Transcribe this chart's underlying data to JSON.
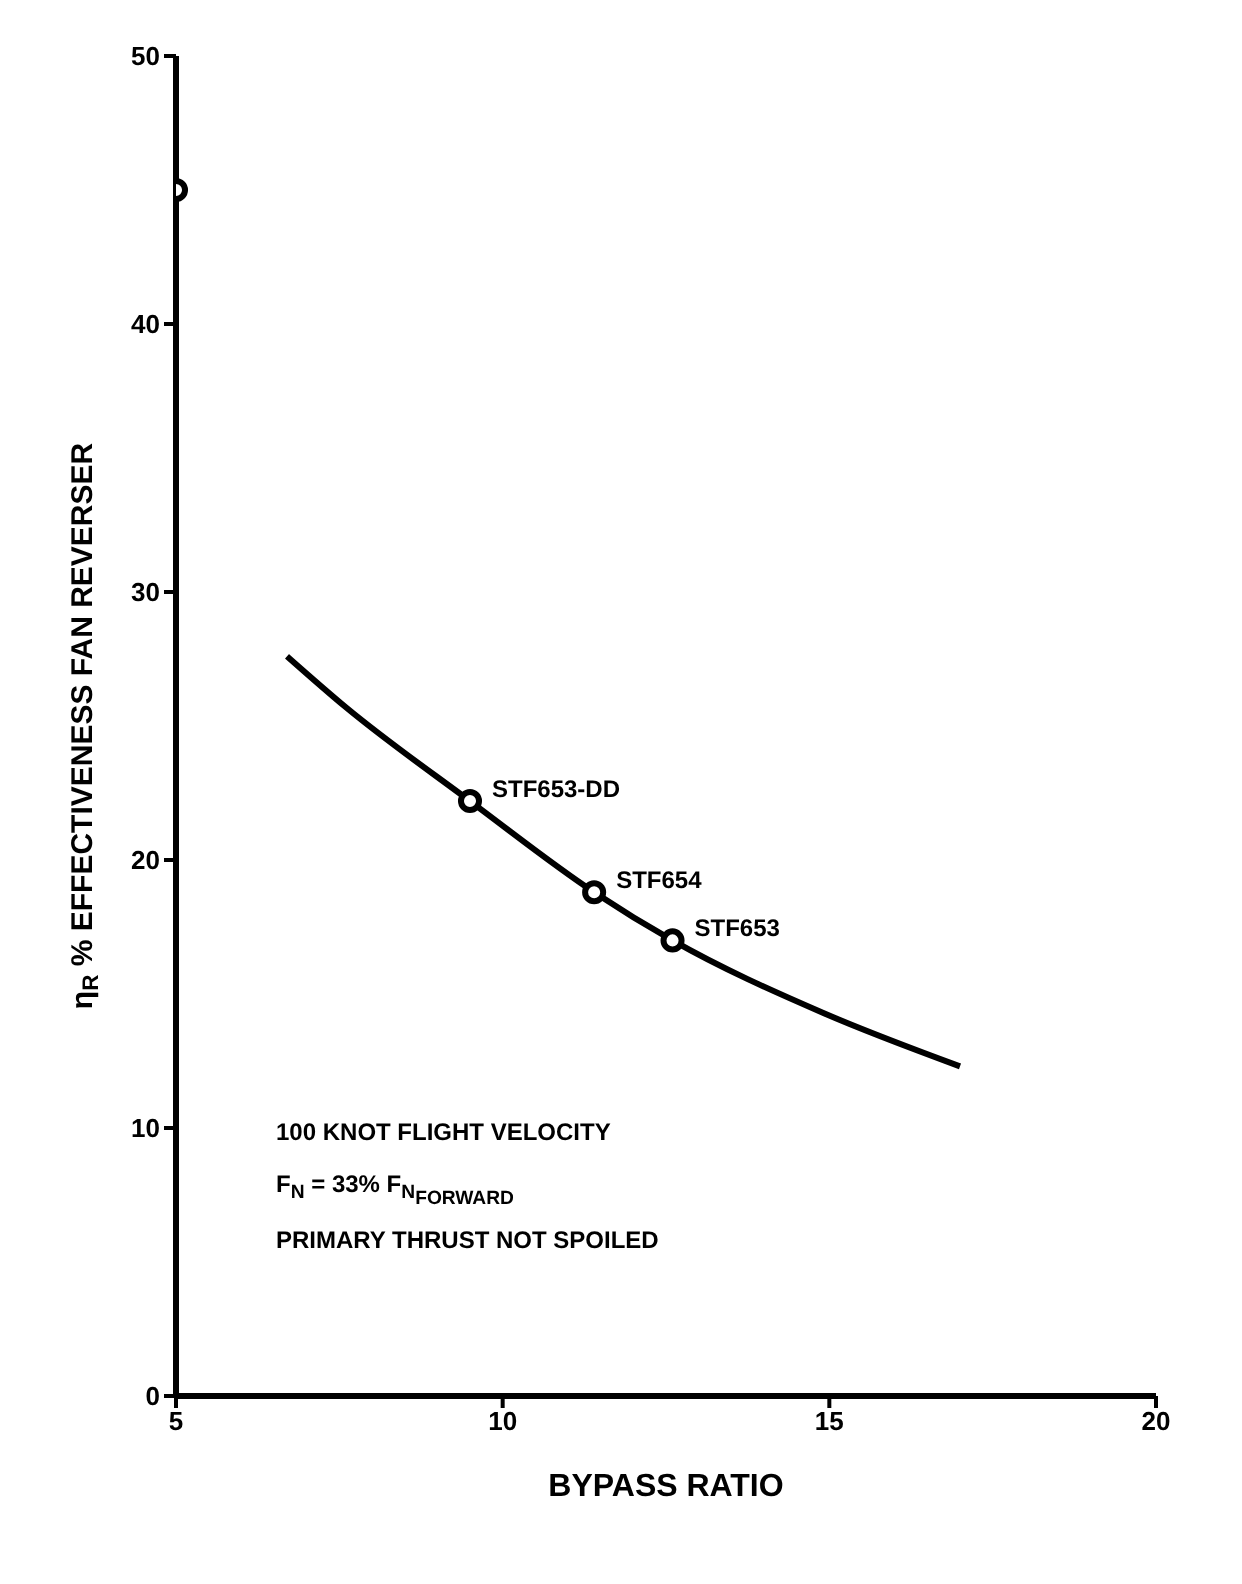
{
  "chart_data": {
    "type": "scatter",
    "xlabel": "BYPASS RATIO",
    "ylabel": "η$_{R}$ % EFFECTIVENESS FAN REVERSER",
    "xlim": [
      5,
      20
    ],
    "xticks": [
      5,
      10,
      15,
      20
    ],
    "ylim": [
      0,
      50
    ],
    "yticks": [
      0,
      10,
      20,
      30,
      40,
      50
    ],
    "grid": false,
    "series": [
      {
        "type": "line",
        "color": "#000000",
        "marker": "none",
        "line_style": "solid",
        "x": [
          6.7,
          7.6,
          9.5,
          11.4,
          12.6,
          14.9,
          17.0
        ],
        "values": [
          27.6,
          25.7,
          22.2,
          18.8,
          17.0,
          14.3,
          12.3
        ]
      },
      {
        "color": "#000000",
        "marker": "circle",
        "x": [
          5,
          9.5,
          11.4,
          12.6
        ],
        "values": [
          45,
          22.2,
          18.8,
          17.0
        ]
      }
    ],
    "annotations": [
      {
        "text": "STF653-DD",
        "x": 9.5,
        "y": 22.2
      },
      {
        "text": "STF654",
        "x": 11.4,
        "y": 18.8
      },
      {
        "text": "STF653",
        "x": 12.6,
        "y": 17.0
      },
      "100 KNOT FLIGHT VELOCITY",
      "F$_{N}$ = 33% F$_{N}$$_{FORWARD}$",
      "PRIMARY THRUST NOT SPOILED"
    ]
  }
}
